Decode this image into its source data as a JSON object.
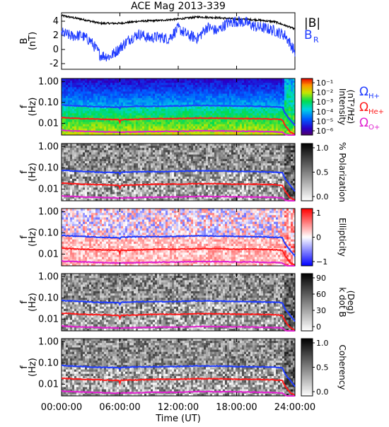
{
  "chart_data": [
    {
      "type": "line",
      "title": "ACE Mag 2013-339",
      "ylabel": "B\n(nT)",
      "ylim": [
        -2.8,
        5.2
      ],
      "yticks": [
        -2,
        0,
        2,
        4
      ],
      "series": [
        {
          "name": "|B|",
          "color": "#000000",
          "x_hours": [
            0,
            2,
            4,
            6,
            8,
            10,
            12,
            14,
            16,
            18,
            20,
            22,
            24
          ],
          "values": [
            4.8,
            4.3,
            3.7,
            3.7,
            4.0,
            4.1,
            4.3,
            4.6,
            4.5,
            4.3,
            4.2,
            3.9,
            2.9
          ]
        },
        {
          "name": "B_R",
          "color": "#1f3bff",
          "x_hours": [
            0,
            1,
            2,
            3,
            4,
            5,
            6,
            7,
            8,
            9,
            10,
            11,
            12,
            13,
            14,
            15,
            16,
            17,
            18,
            19,
            20,
            21,
            22,
            23,
            24
          ],
          "values": [
            2.4,
            1.9,
            2.0,
            1.2,
            -0.8,
            -1.0,
            0.2,
            1.5,
            2.2,
            1.6,
            1.8,
            1.5,
            3.0,
            2.0,
            1.6,
            3.2,
            2.6,
            3.7,
            4.0,
            3.8,
            3.2,
            3.0,
            2.6,
            2.0,
            -0.3
          ]
        }
      ]
    },
    {
      "type": "heatmap",
      "ylabel": "f\n(Hz)",
      "yscale": "log",
      "yticks": [
        "1.00",
        "0.10",
        "0.01"
      ],
      "colorbar": {
        "label": "Intensity\n(nT²/Hz)",
        "ticks": [
          "10⁻¹",
          "10⁻²",
          "10⁻³",
          "10⁻⁴",
          "10⁻⁵",
          "10⁻⁶"
        ],
        "scheme": "rainbow"
      },
      "legend": [
        {
          "label": "Ω",
          "sub": "H+",
          "color": "#1f3bff"
        },
        {
          "label": "Ω",
          "sub": "He+",
          "color": "#ff1a1a"
        },
        {
          "label": "Ω",
          "sub": "O+",
          "color": "#e020d0"
        }
      ]
    },
    {
      "type": "heatmap",
      "ylabel": "f\n(Hz)",
      "yscale": "log",
      "yticks": [
        "1.00",
        "0.10",
        "0.01"
      ],
      "colorbar": {
        "label": "% Polarization",
        "ticks": [
          "1.0",
          "0.5",
          "0.0"
        ],
        "scheme": "gray"
      }
    },
    {
      "type": "heatmap",
      "ylabel": "f\n(Hz)",
      "yscale": "log",
      "yticks": [
        "1.00",
        "0.10",
        "0.01"
      ],
      "colorbar": {
        "label": "Ellipticity",
        "ticks": [
          "1",
          "0",
          "−1"
        ],
        "scheme": "bwr"
      }
    },
    {
      "type": "heatmap",
      "ylabel": "f\n(Hz)",
      "yscale": "log",
      "yticks": [
        "1.00",
        "0.10",
        "0.01"
      ],
      "colorbar": {
        "label": "k dot B\n(Deg)",
        "ticks": [
          "90",
          "60",
          "30",
          "0"
        ],
        "scheme": "gray"
      }
    },
    {
      "type": "heatmap",
      "ylabel": "f\n(Hz)",
      "yscale": "log",
      "yticks": [
        "1.00",
        "0.10",
        "0.01"
      ],
      "colorbar": {
        "label": "Coherency",
        "ticks": [
          "1.0",
          "0.5",
          "0.0"
        ],
        "scheme": "gray"
      }
    }
  ],
  "gyrofrequencies": {
    "x_hours": [
      0,
      2,
      4,
      5.9,
      6,
      6.1,
      8,
      10,
      12,
      14,
      16,
      18,
      20,
      22,
      22.7,
      23,
      23.5,
      24
    ],
    "H+": [
      0.075,
      0.068,
      0.062,
      0.06,
      0.05,
      0.062,
      0.066,
      0.066,
      0.068,
      0.073,
      0.071,
      0.068,
      0.066,
      0.062,
      0.06,
      0.03,
      0.015,
      0.008
    ],
    "He+": [
      0.019,
      0.017,
      0.016,
      0.015,
      0.011,
      0.015,
      0.016,
      0.017,
      0.017,
      0.018,
      0.018,
      0.017,
      0.017,
      0.016,
      0.015,
      0.008,
      0.004,
      0.003
    ],
    "O+": [
      0.0047,
      0.0043,
      0.004,
      0.0038,
      0.0038,
      0.0038,
      0.004,
      0.0042,
      0.0042,
      0.0045,
      0.0044,
      0.0043,
      0.0042,
      0.004,
      0.0038,
      0.003,
      0.0026,
      0.0025
    ]
  },
  "x_axis": {
    "label": "Time (UT)",
    "tick_hours": [
      0,
      6,
      12,
      18,
      24
    ],
    "tick_labels": [
      "00:00:00",
      "06:00:00",
      "12:00:00",
      "18:00:00",
      "24:00:00"
    ]
  }
}
